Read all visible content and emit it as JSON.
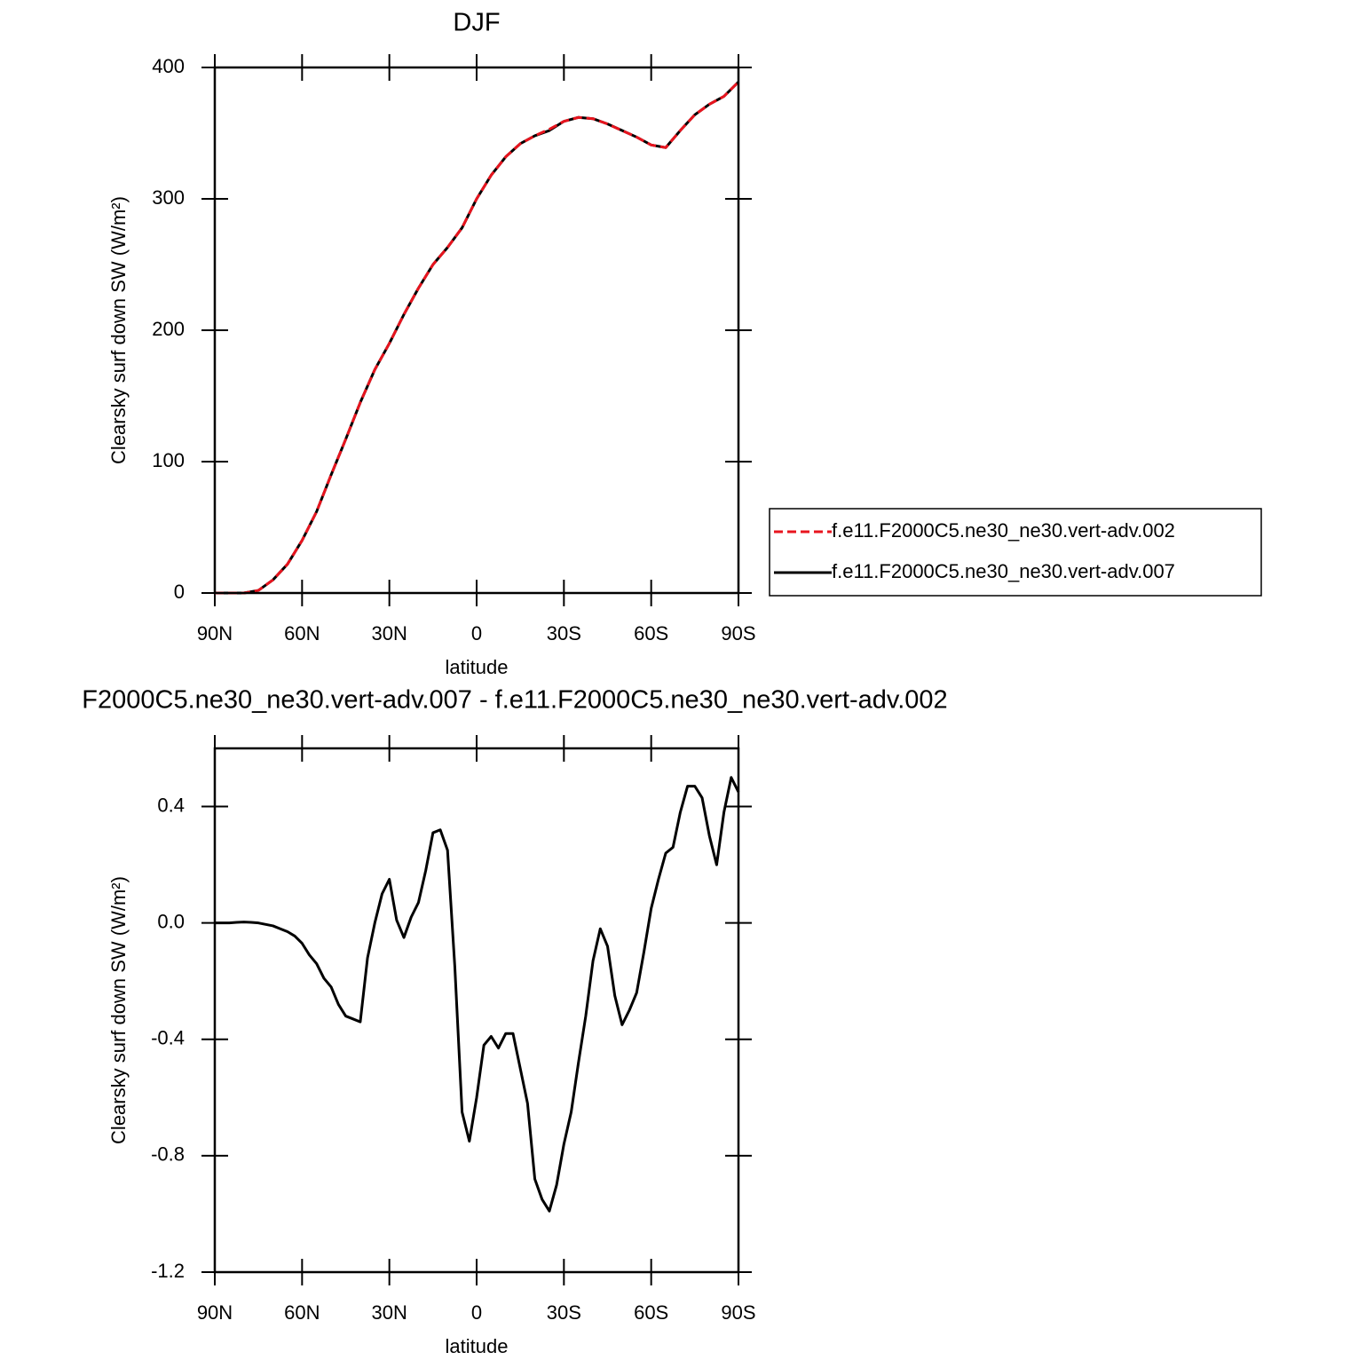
{
  "chart_data": [
    {
      "type": "line",
      "title": "DJF",
      "xlabel": "latitude",
      "ylabel": "Clearsky surf down SW (W/m²)",
      "x": [
        90,
        85,
        80,
        75,
        70,
        65,
        60,
        55,
        50,
        45,
        40,
        35,
        30,
        25,
        20,
        15,
        10,
        5,
        0,
        -5,
        -10,
        -15,
        -20,
        -25,
        -30,
        -35,
        -40,
        -45,
        -50,
        -55,
        -60,
        -65,
        -70,
        -75,
        -80,
        -85,
        -90
      ],
      "series": [
        {
          "name": "f.e11.F2000C5.ne30_ne30.vert-adv.002",
          "color": "#e8141e",
          "dash": true,
          "values": [
            0,
            0,
            0,
            2,
            10,
            22,
            40,
            62,
            90,
            117,
            145,
            170,
            190,
            212,
            232,
            250,
            263,
            278,
            300,
            318,
            332,
            342,
            348,
            353,
            359,
            362,
            361,
            357,
            352,
            347,
            341,
            339,
            352,
            364,
            372,
            378,
            389
          ]
        },
        {
          "name": "f.e11.F2000C5.ne30_ne30.vert-adv.007",
          "color": "#000000",
          "dash": false,
          "values": [
            0,
            0,
            0,
            2,
            10,
            22,
            40,
            62,
            90,
            117,
            145,
            170,
            190,
            212,
            232,
            250,
            263,
            278,
            300,
            318,
            332,
            342,
            348,
            352,
            359,
            362,
            361,
            357,
            352,
            347,
            341,
            339,
            352,
            364,
            372,
            378,
            389
          ]
        }
      ],
      "xlim": [
        90,
        -90
      ],
      "xticks": [
        {
          "value": 90,
          "label": "90N"
        },
        {
          "value": 60,
          "label": "60N"
        },
        {
          "value": 30,
          "label": "30N"
        },
        0,
        {
          "value": -30,
          "label": "30S"
        },
        {
          "value": -60,
          "label": "60S"
        },
        {
          "value": -90,
          "label": "90S"
        }
      ],
      "ylim": [
        0,
        400
      ],
      "yticks": [
        0,
        100,
        200,
        300,
        400
      ],
      "grid": false,
      "legend": "right"
    },
    {
      "type": "line",
      "title": "F2000C5.ne30_ne30.vert-adv.007 - f.e11.F2000C5.ne30_ne30.vert-adv.002",
      "xlabel": "latitude",
      "ylabel": "Clearsky surf down SW (W/m²)",
      "x": [
        90,
        87.5,
        85,
        82.5,
        80,
        77.5,
        75,
        72.5,
        70,
        67.5,
        65,
        62.5,
        60,
        57.5,
        55,
        52.5,
        50,
        47.5,
        45,
        42.5,
        40,
        37.5,
        35,
        32.5,
        30,
        27.5,
        25,
        22.5,
        20,
        17.5,
        15,
        12.5,
        10,
        7.5,
        5,
        2.5,
        0,
        -2.5,
        -5,
        -7.5,
        -10,
        -12.5,
        -15,
        -17.5,
        -20,
        -22.5,
        -25,
        -27.5,
        -30,
        -32.5,
        -35,
        -37.5,
        -40,
        -42.5,
        -45,
        -47.5,
        -50,
        -52.5,
        -55,
        -57.5,
        -60,
        -62.5,
        -65,
        -67.5,
        -70,
        -72.5,
        -75,
        -77.5,
        -80,
        -82.5,
        -85,
        -87.5,
        -90
      ],
      "series": [
        {
          "color": "#000000",
          "dash": false,
          "values": [
            0,
            0,
            0,
            0.002,
            0.003,
            0.002,
            0,
            -0.005,
            -0.01,
            -0.02,
            -0.03,
            -0.045,
            -0.07,
            -0.11,
            -0.14,
            -0.19,
            -0.22,
            -0.28,
            -0.32,
            -0.33,
            -0.34,
            -0.12,
            0.0,
            0.1,
            0.15,
            0.01,
            -0.05,
            0.02,
            0.07,
            0.18,
            0.31,
            0.32,
            0.25,
            -0.15,
            -0.65,
            -0.75,
            -0.6,
            -0.42,
            -0.39,
            -0.43,
            -0.38,
            -0.38,
            -0.5,
            -0.62,
            -0.88,
            -0.95,
            -0.99,
            -0.9,
            -0.76,
            -0.65,
            -0.48,
            -0.32,
            -0.13,
            -0.02,
            -0.08,
            -0.25,
            -0.35,
            -0.3,
            -0.24,
            -0.1,
            0.05,
            0.15,
            0.24,
            0.26,
            0.38,
            0.47,
            0.47,
            0.43,
            0.3,
            0.2,
            0.38,
            0.5,
            0.45
          ]
        }
      ],
      "xlim": [
        90,
        -90
      ],
      "xticks": [
        {
          "value": 90,
          "label": "90N"
        },
        {
          "value": 60,
          "label": "60N"
        },
        {
          "value": 30,
          "label": "30N"
        },
        0,
        {
          "value": -30,
          "label": "30S"
        },
        {
          "value": -60,
          "label": "60S"
        },
        {
          "value": -90,
          "label": "90S"
        }
      ],
      "ylim": [
        -1.2,
        0.6
      ],
      "yticks": [
        -1.2,
        -0.8,
        -0.4,
        {
          "value": 0,
          "label": "0.0"
        },
        0.4
      ],
      "grid": false
    }
  ]
}
